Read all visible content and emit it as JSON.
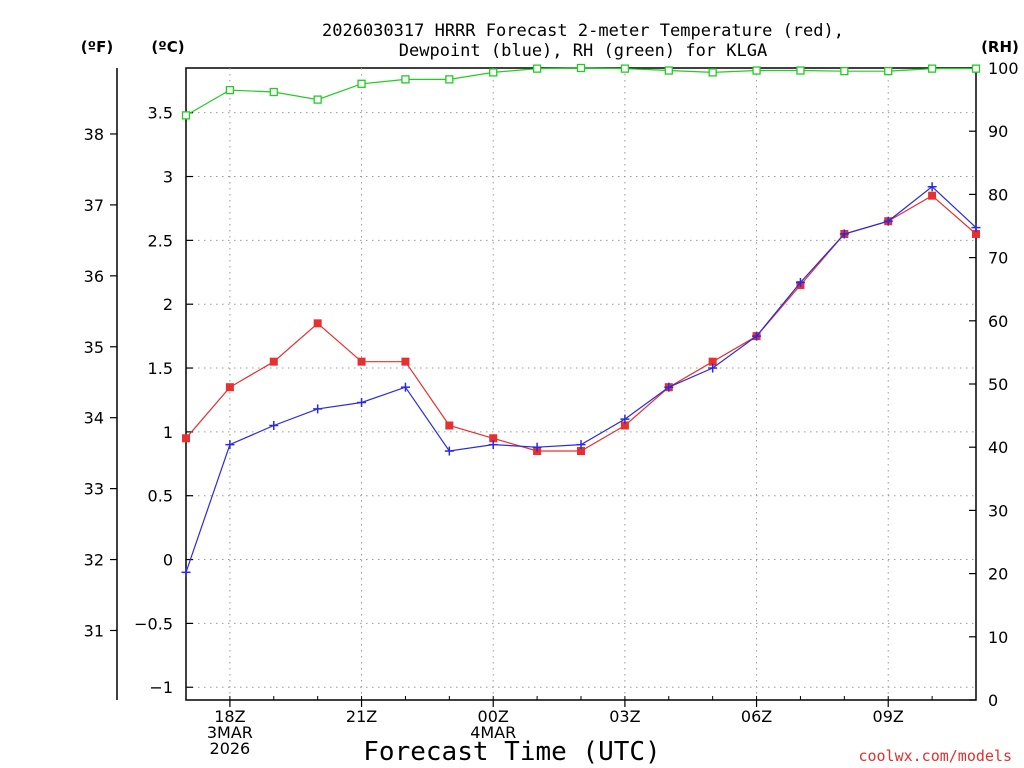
{
  "chart_data": {
    "type": "line",
    "title_line1": "2026030317 HRRR Forecast 2-meter Temperature (red),",
    "title_line2": "Dewpoint (blue), RH (green) for KLGA",
    "xlabel": "Forecast Time (UTC)",
    "credit": "coolwx.com/models",
    "units": {
      "fahrenheit": "(ºF)",
      "celsius": "(ºC)",
      "rh": "(RH)"
    },
    "x_hours": [
      17,
      18,
      19,
      20,
      21,
      22,
      23,
      24,
      25,
      26,
      27,
      28,
      29,
      30,
      31,
      32,
      33,
      34,
      35
    ],
    "xlim": [
      17,
      35
    ],
    "x_ticks": [
      {
        "hour": 18,
        "labels": [
          "18Z",
          "3MAR",
          "2026"
        ]
      },
      {
        "hour": 21,
        "labels": [
          "21Z"
        ]
      },
      {
        "hour": 24,
        "labels": [
          "00Z",
          "4MAR"
        ]
      },
      {
        "hour": 27,
        "labels": [
          "03Z"
        ]
      },
      {
        "hour": 30,
        "labels": [
          "06Z"
        ]
      },
      {
        "hour": 33,
        "labels": [
          "09Z"
        ]
      }
    ],
    "celsius_axis": {
      "ylim": [
        -1.1,
        3.85
      ],
      "ticks": [
        "-1",
        "-0.5",
        "0",
        "0.5",
        "1",
        "1.5",
        "2",
        "2.5",
        "3",
        "3.5"
      ]
    },
    "fahrenheit_ticks": [
      "31",
      "32",
      "33",
      "34",
      "35",
      "36",
      "37",
      "38"
    ],
    "rh_axis": {
      "ylim": [
        0,
        100
      ],
      "ticks": [
        "0",
        "10",
        "20",
        "30",
        "40",
        "50",
        "60",
        "70",
        "80",
        "90",
        "100"
      ]
    },
    "series": [
      {
        "name": "Temperature",
        "axis": "celsius",
        "color": "#e83030",
        "marker": "filled-square",
        "values": [
          0.95,
          1.35,
          1.55,
          1.85,
          1.55,
          1.55,
          1.05,
          0.95,
          0.85,
          0.85,
          1.05,
          1.35,
          1.55,
          1.75,
          2.15,
          2.55,
          2.65,
          2.85,
          2.55
        ]
      },
      {
        "name": "Dewpoint",
        "axis": "celsius",
        "color": "#2a2ae0",
        "marker": "plus",
        "values": [
          -0.1,
          0.9,
          1.05,
          1.18,
          1.23,
          1.35,
          0.85,
          0.9,
          0.88,
          0.9,
          1.1,
          1.35,
          1.5,
          1.75,
          2.17,
          2.55,
          2.65,
          2.92,
          2.6
        ]
      },
      {
        "name": "RH",
        "axis": "rh",
        "color": "#22cc22",
        "marker": "open-square",
        "values": [
          92.5,
          96.5,
          96.2,
          95.0,
          97.5,
          98.2,
          98.2,
          99.3,
          99.9,
          100,
          99.9,
          99.6,
          99.3,
          99.6,
          99.6,
          99.5,
          99.5,
          99.9,
          99.9
        ]
      }
    ]
  }
}
